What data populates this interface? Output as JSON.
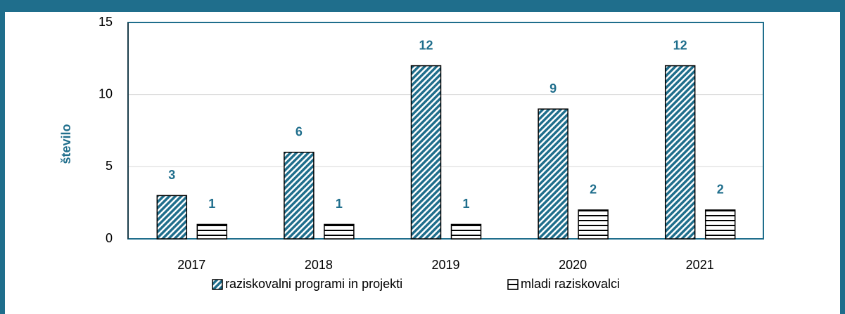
{
  "chart_data": {
    "type": "bar",
    "y_label": "število",
    "categories": [
      "2017",
      "2018",
      "2019",
      "2020",
      "2021"
    ],
    "series": [
      {
        "name": "raziskovalni programi in projekti",
        "color": "#1f6e8c",
        "pattern": "diagonal",
        "values": [
          3,
          6,
          12,
          9,
          12
        ]
      },
      {
        "name": "mladi raziskovalci",
        "color": "#000000",
        "pattern": "horizontal",
        "values": [
          1,
          1,
          1,
          2,
          2
        ]
      }
    ],
    "ylim": [
      0,
      15
    ],
    "yticks": [
      0,
      5,
      10,
      15
    ],
    "grid": true,
    "legend": "bottom"
  }
}
